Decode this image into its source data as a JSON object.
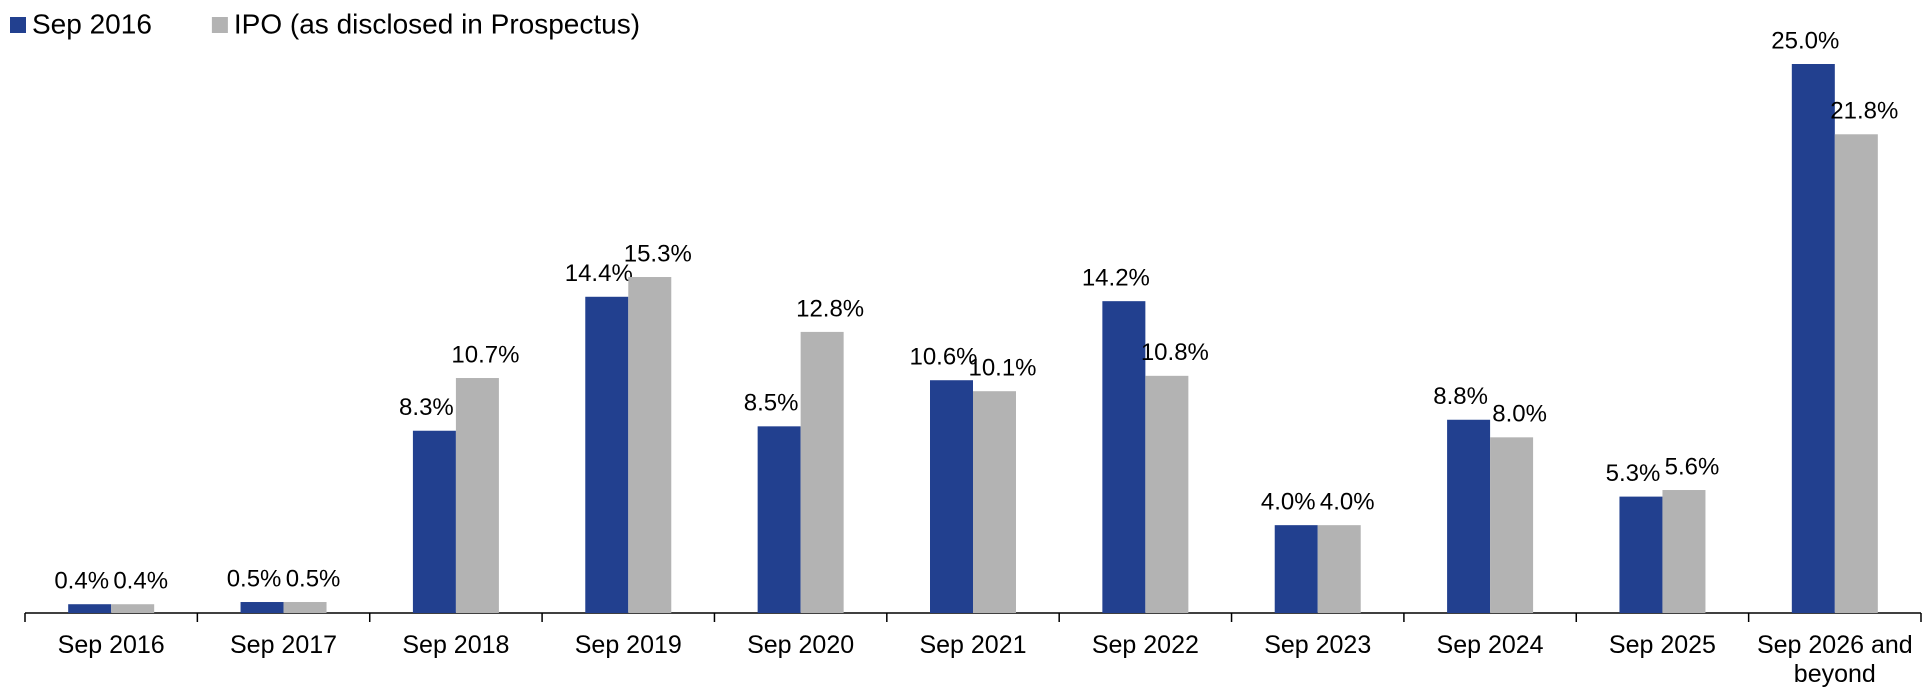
{
  "chart_data": {
    "type": "bar",
    "categories": [
      "Sep 2016",
      "Sep 2017",
      "Sep 2018",
      "Sep 2019",
      "Sep 2020",
      "Sep 2021",
      "Sep 2022",
      "Sep 2023",
      "Sep 2024",
      "Sep 2025",
      "Sep 2026 and beyond"
    ],
    "series": [
      {
        "name": "Sep 2016",
        "color": "#22408f",
        "values": [
          0.4,
          0.5,
          8.3,
          14.4,
          8.5,
          10.6,
          14.2,
          4.0,
          8.8,
          5.3,
          25.0
        ],
        "value_labels": [
          "0.4%",
          "0.5%",
          "8.3%",
          "14.4%",
          "8.5%",
          "10.6%",
          "14.2%",
          "4.0%",
          "8.8%",
          "5.3%",
          "25.0%"
        ]
      },
      {
        "name": "IPO (as disclosed in Prospectus)",
        "color": "#b3b3b3",
        "values": [
          0.4,
          0.5,
          10.7,
          15.3,
          12.8,
          10.1,
          10.8,
          4.0,
          8.0,
          5.6,
          21.8
        ],
        "value_labels": [
          "0.4%",
          "0.5%",
          "10.7%",
          "15.3%",
          "12.8%",
          "10.1%",
          "10.8%",
          "4.0%",
          "8.0%",
          "5.6%",
          "21.8%"
        ]
      }
    ],
    "legend": "top-left",
    "grid": false
  }
}
